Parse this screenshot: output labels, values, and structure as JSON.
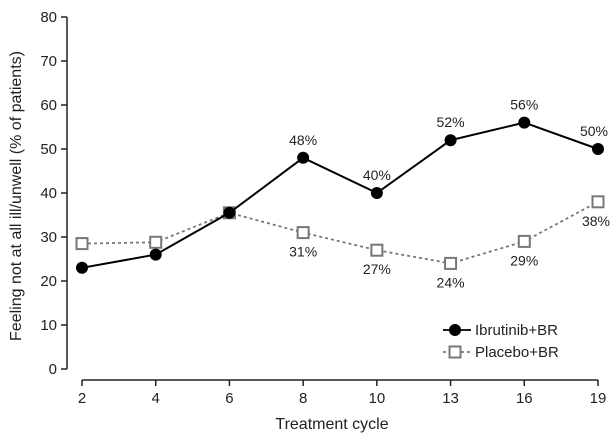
{
  "chart_data": {
    "type": "line",
    "xlabel": "Treatment cycle",
    "ylabel": "Feeling not at all ill/unwell (% of patients)",
    "categories": [
      "2",
      "4",
      "6",
      "8",
      "10",
      "13",
      "16",
      "19"
    ],
    "ylim": [
      0,
      80
    ],
    "yticks": [
      0,
      10,
      20,
      30,
      40,
      50,
      60,
      70,
      80
    ],
    "grid": false,
    "legend_position": "bottom-right",
    "series": [
      {
        "name": "Ibrutinib+BR",
        "values": [
          23,
          26,
          35.5,
          48,
          40,
          52,
          56,
          50
        ],
        "labels": [
          "",
          "",
          "",
          "48%",
          "40%",
          "52%",
          "56%",
          "50%"
        ],
        "marker": "filled-circle",
        "line_style": "solid",
        "color": "#000000"
      },
      {
        "name": "Placebo+BR",
        "values": [
          28.5,
          28.8,
          35.5,
          31,
          27,
          24,
          29,
          38
        ],
        "labels": [
          "",
          "",
          "",
          "31%",
          "27%",
          "24%",
          "29%",
          "38%"
        ],
        "marker": "open-square",
        "line_style": "dashed",
        "color": "#777777"
      }
    ]
  }
}
